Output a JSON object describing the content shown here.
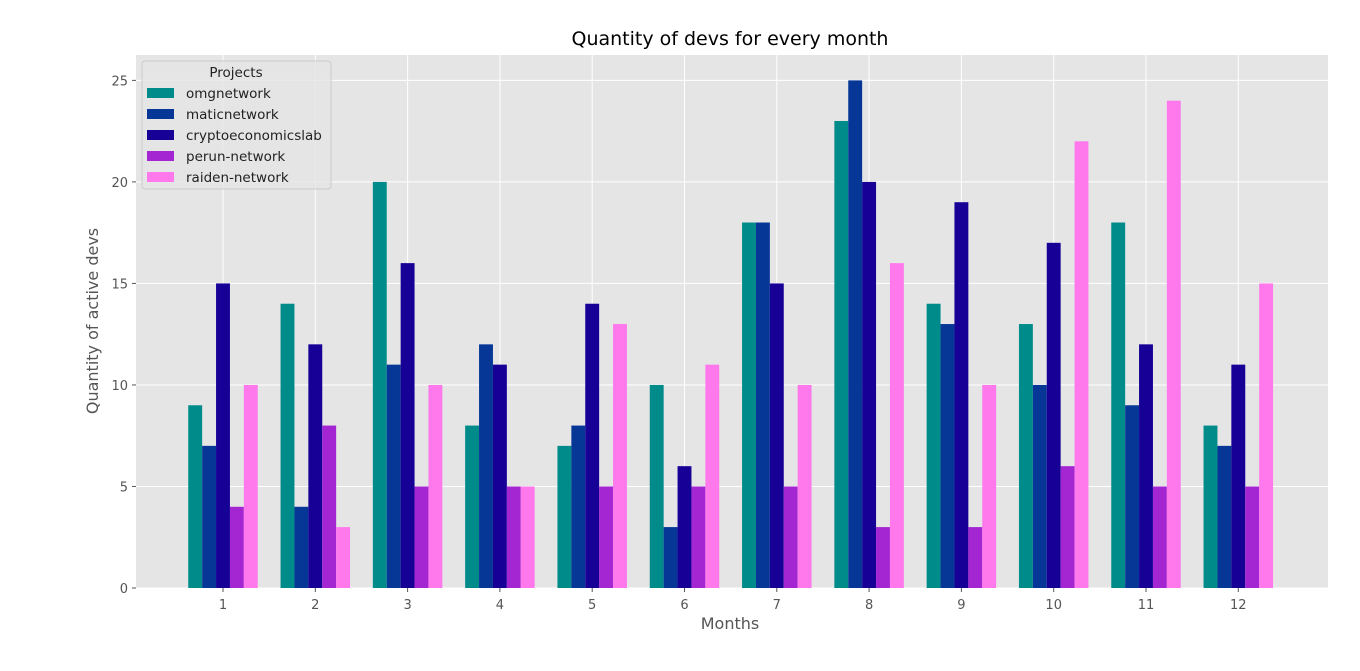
{
  "chart_data": {
    "type": "bar",
    "title": "Quantity of devs for every month",
    "xlabel": "Months",
    "ylabel": "Quantity of active devs",
    "ylim": [
      0,
      26.25
    ],
    "yticks": [
      0,
      5,
      10,
      15,
      20,
      25
    ],
    "grid": true,
    "legend_title": "Projects",
    "legend_position": "top-left",
    "categories": [
      "1",
      "2",
      "3",
      "4",
      "5",
      "6",
      "7",
      "8",
      "9",
      "10",
      "11",
      "12"
    ],
    "series": [
      {
        "name": "omgnetwork",
        "color": "#008b8b",
        "values": [
          9,
          14,
          20,
          8,
          7,
          10,
          18,
          23,
          14,
          13,
          18,
          8
        ]
      },
      {
        "name": "maticnetwork",
        "color": "#063797",
        "values": [
          7,
          4,
          11,
          12,
          8,
          3,
          18,
          25,
          13,
          10,
          9,
          7
        ]
      },
      {
        "name": "cryptoeconomicslab",
        "color": "#160096",
        "values": [
          15,
          12,
          16,
          11,
          14,
          6,
          15,
          20,
          19,
          17,
          12,
          11
        ]
      },
      {
        "name": "perun-network",
        "color": "#a326d2",
        "values": [
          4,
          8,
          5,
          5,
          5,
          5,
          5,
          3,
          3,
          6,
          5,
          5
        ]
      },
      {
        "name": "raiden-network",
        "color": "#ff79ec",
        "values": [
          10,
          3,
          10,
          5,
          13,
          11,
          10,
          16,
          10,
          22,
          24,
          15
        ]
      }
    ]
  }
}
